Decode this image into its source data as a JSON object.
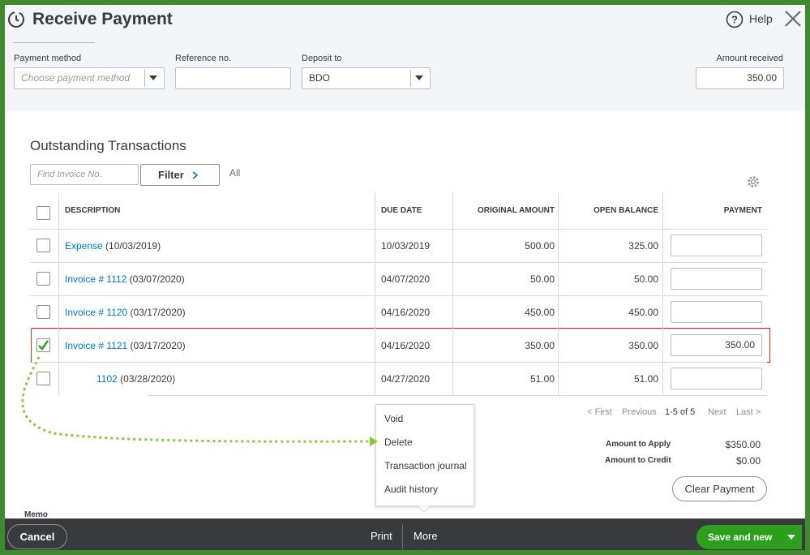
{
  "header": {
    "title": "Receive Payment",
    "help": "Help"
  },
  "fields": {
    "payment_method": {
      "label": "Payment method",
      "placeholder": "Choose payment method"
    },
    "reference": {
      "label": "Reference no."
    },
    "deposit": {
      "label": "Deposit to",
      "value": "BDO"
    },
    "amount": {
      "label": "Amount received",
      "value": "350.00"
    }
  },
  "outstanding": {
    "title": "Outstanding Transactions",
    "search_placeholder": "Find Invoice No.",
    "filter": "Filter",
    "all": "All"
  },
  "table": {
    "columns": [
      "DESCRIPTION",
      "DUE DATE",
      "ORIGINAL AMOUNT",
      "OPEN BALANCE",
      "PAYMENT"
    ],
    "rows": [
      {
        "link": "Expense",
        "date": "(10/03/2019)",
        "due": "10/03/2019",
        "original": "500.00",
        "open": "325.00",
        "payment": "",
        "checked": false
      },
      {
        "link": "Invoice # 1112",
        "date": "(03/07/2020)",
        "due": "04/07/2020",
        "original": "50.00",
        "open": "50.00",
        "payment": "",
        "checked": false
      },
      {
        "link": "Invoice # 1120",
        "date": "(03/17/2020)",
        "due": "04/16/2020",
        "original": "450.00",
        "open": "450.00",
        "payment": "",
        "checked": false
      },
      {
        "link": "Invoice # 1121",
        "date": "(03/17/2020)",
        "due": "04/16/2020",
        "original": "350.00",
        "open": "350.00",
        "payment": "350.00",
        "checked": true
      },
      {
        "link": "1102",
        "date": "(03/28/2020)",
        "due": "04/27/2020",
        "original": "51.00",
        "open": "51.00",
        "payment": "",
        "checked": false
      }
    ]
  },
  "pagination": {
    "first": "< First",
    "previous": "Previous",
    "range": "1-5 of 5",
    "next": "Next",
    "last": "Last >"
  },
  "menu": [
    "Void",
    "Delete",
    "Transaction journal",
    "Audit history"
  ],
  "totals": {
    "apply_label": "Amount to Apply",
    "apply": "$350.00",
    "credit_label": "Amount to Credit",
    "credit": "$0.00",
    "clear": "Clear Payment"
  },
  "memo": "Memo",
  "footer": {
    "cancel": "Cancel",
    "print": "Print",
    "more": "More",
    "save": "Save and new"
  }
}
